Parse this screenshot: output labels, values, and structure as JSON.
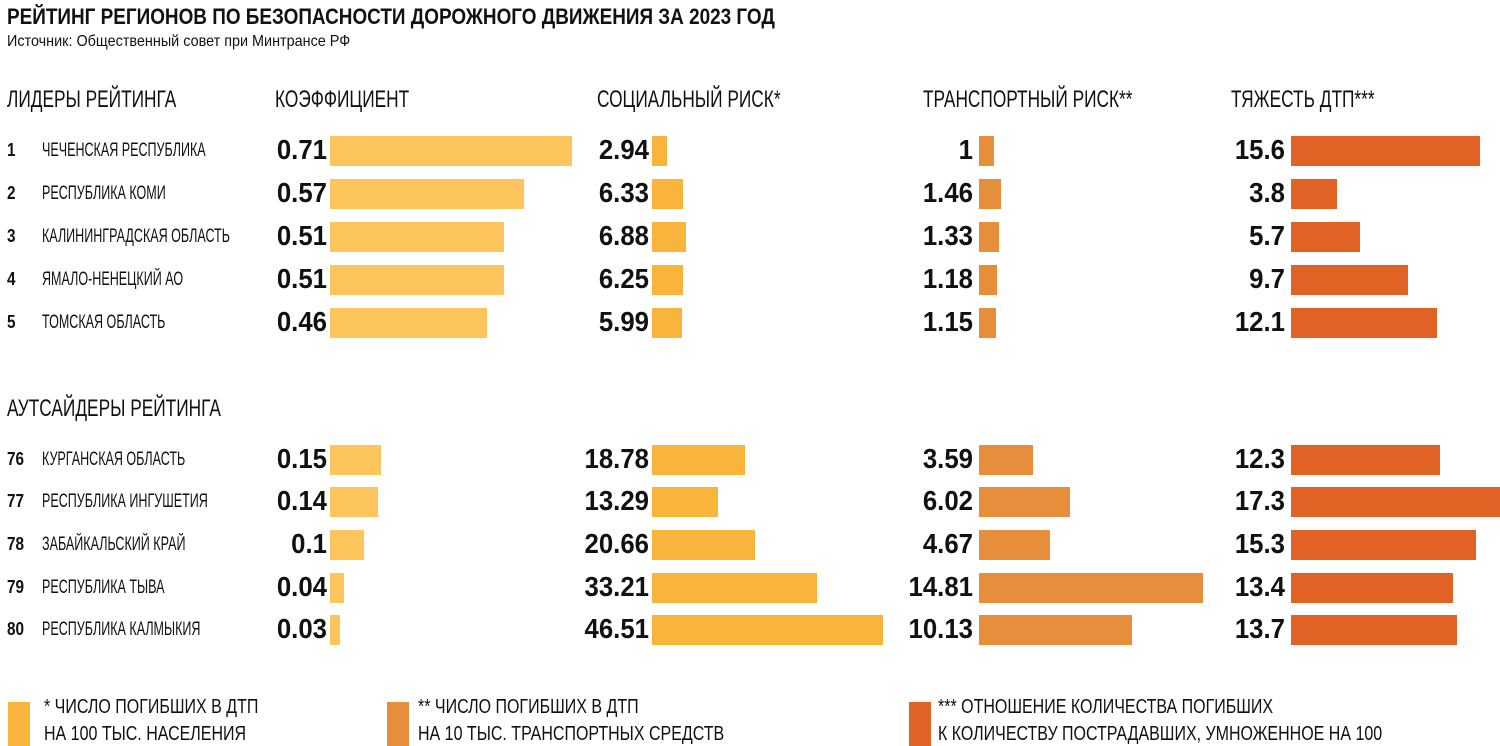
{
  "title": "РЕЙТИНГ РЕГИОНОВ ПО БЕЗОПАСНОСТИ ДОРОЖНОГО ДВИЖЕНИЯ ЗА 2023 ГОД",
  "source": "Источник: Общественный совет при Минтрансе РФ",
  "colors": {
    "coef": "#FDC55C",
    "social": "#F9B43B",
    "transport": "#E78E3C",
    "severity": "#E06325"
  },
  "chart_data": {
    "type": "table",
    "title": "РЕЙТИНГ РЕГИОНОВ ПО БЕЗОПАСНОСТИ ДОРОЖНОГО ДВИЖЕНИЯ ЗА 2023 ГОД",
    "columns": [
      "КОЭФФИЦИЕНТ",
      "СОЦИАЛЬНЫЙ РИСК*",
      "ТРАНСПОРТНЫЙ РИСК**",
      "ТЯЖЕСТЬ ДТП***"
    ],
    "groups": [
      {
        "label": "ЛИДЕРЫ РЕЙТИНГА",
        "rows": [
          {
            "rank": "1",
            "name": "ЧЕЧЕНСКАЯ РЕСПУБЛИКА",
            "coef": 0.71,
            "social": 2.94,
            "transport": 1,
            "severity": 15.6
          },
          {
            "rank": "2",
            "name": "РЕСПУБЛИКА КОМИ",
            "coef": 0.57,
            "social": 6.33,
            "transport": 1.46,
            "severity": 3.8
          },
          {
            "rank": "3",
            "name": "КАЛИНИНГРАДСКАЯ ОБЛАСТЬ",
            "coef": 0.51,
            "social": 6.88,
            "transport": 1.33,
            "severity": 5.7
          },
          {
            "rank": "4",
            "name": "ЯМАЛО-НЕНЕЦКИЙ АО",
            "coef": 0.51,
            "social": 6.25,
            "transport": 1.18,
            "severity": 9.7
          },
          {
            "rank": "5",
            "name": "ТОМСКАЯ ОБЛАСТЬ",
            "coef": 0.46,
            "social": 5.99,
            "transport": 1.15,
            "severity": 12.1
          }
        ]
      },
      {
        "label": "АУТСАЙДЕРЫ РЕЙТИНГА",
        "rows": [
          {
            "rank": "76",
            "name": "КУРГАНСКАЯ ОБЛАСТЬ",
            "coef": 0.15,
            "social": 18.78,
            "transport": 3.59,
            "severity": 12.3
          },
          {
            "rank": "77",
            "name": "РЕСПУБЛИКА ИНГУШЕТИЯ",
            "coef": 0.14,
            "social": 13.29,
            "transport": 6.02,
            "severity": 17.3
          },
          {
            "rank": "78",
            "name": "ЗАБАЙКАЛЬСКИЙ КРАЙ",
            "coef": 0.1,
            "social": 20.66,
            "transport": 4.67,
            "severity": 15.3
          },
          {
            "rank": "79",
            "name": "РЕСПУБЛИКА ТЫВА",
            "coef": 0.04,
            "social": 33.21,
            "transport": 14.81,
            "severity": 13.4
          },
          {
            "rank": "80",
            "name": "РЕСПУБЛИКА КАЛМЫКИЯ",
            "coef": 0.03,
            "social": 46.51,
            "transport": 10.13,
            "severity": 13.7
          }
        ]
      }
    ]
  },
  "legend": [
    {
      "line1": "*   ЧИСЛО ПОГИБШИХ В ДТП",
      "line2": "НА 100 ТЫС. НАСЕЛЕНИЯ"
    },
    {
      "line1": "** ЧИСЛО ПОГИБШИХ В ДТП",
      "line2": "НА 10 ТЫС. ТРАНСПОРТНЫХ СРЕДСТВ"
    },
    {
      "line1": "*** ОТНОШЕНИЕ КОЛИЧЕСТВА ПОГИБШИХ",
      "line2": "К КОЛИЧЕСТВУ ПОСТРАДАВШИХ, УМНОЖЕННОЕ НА 100"
    }
  ]
}
